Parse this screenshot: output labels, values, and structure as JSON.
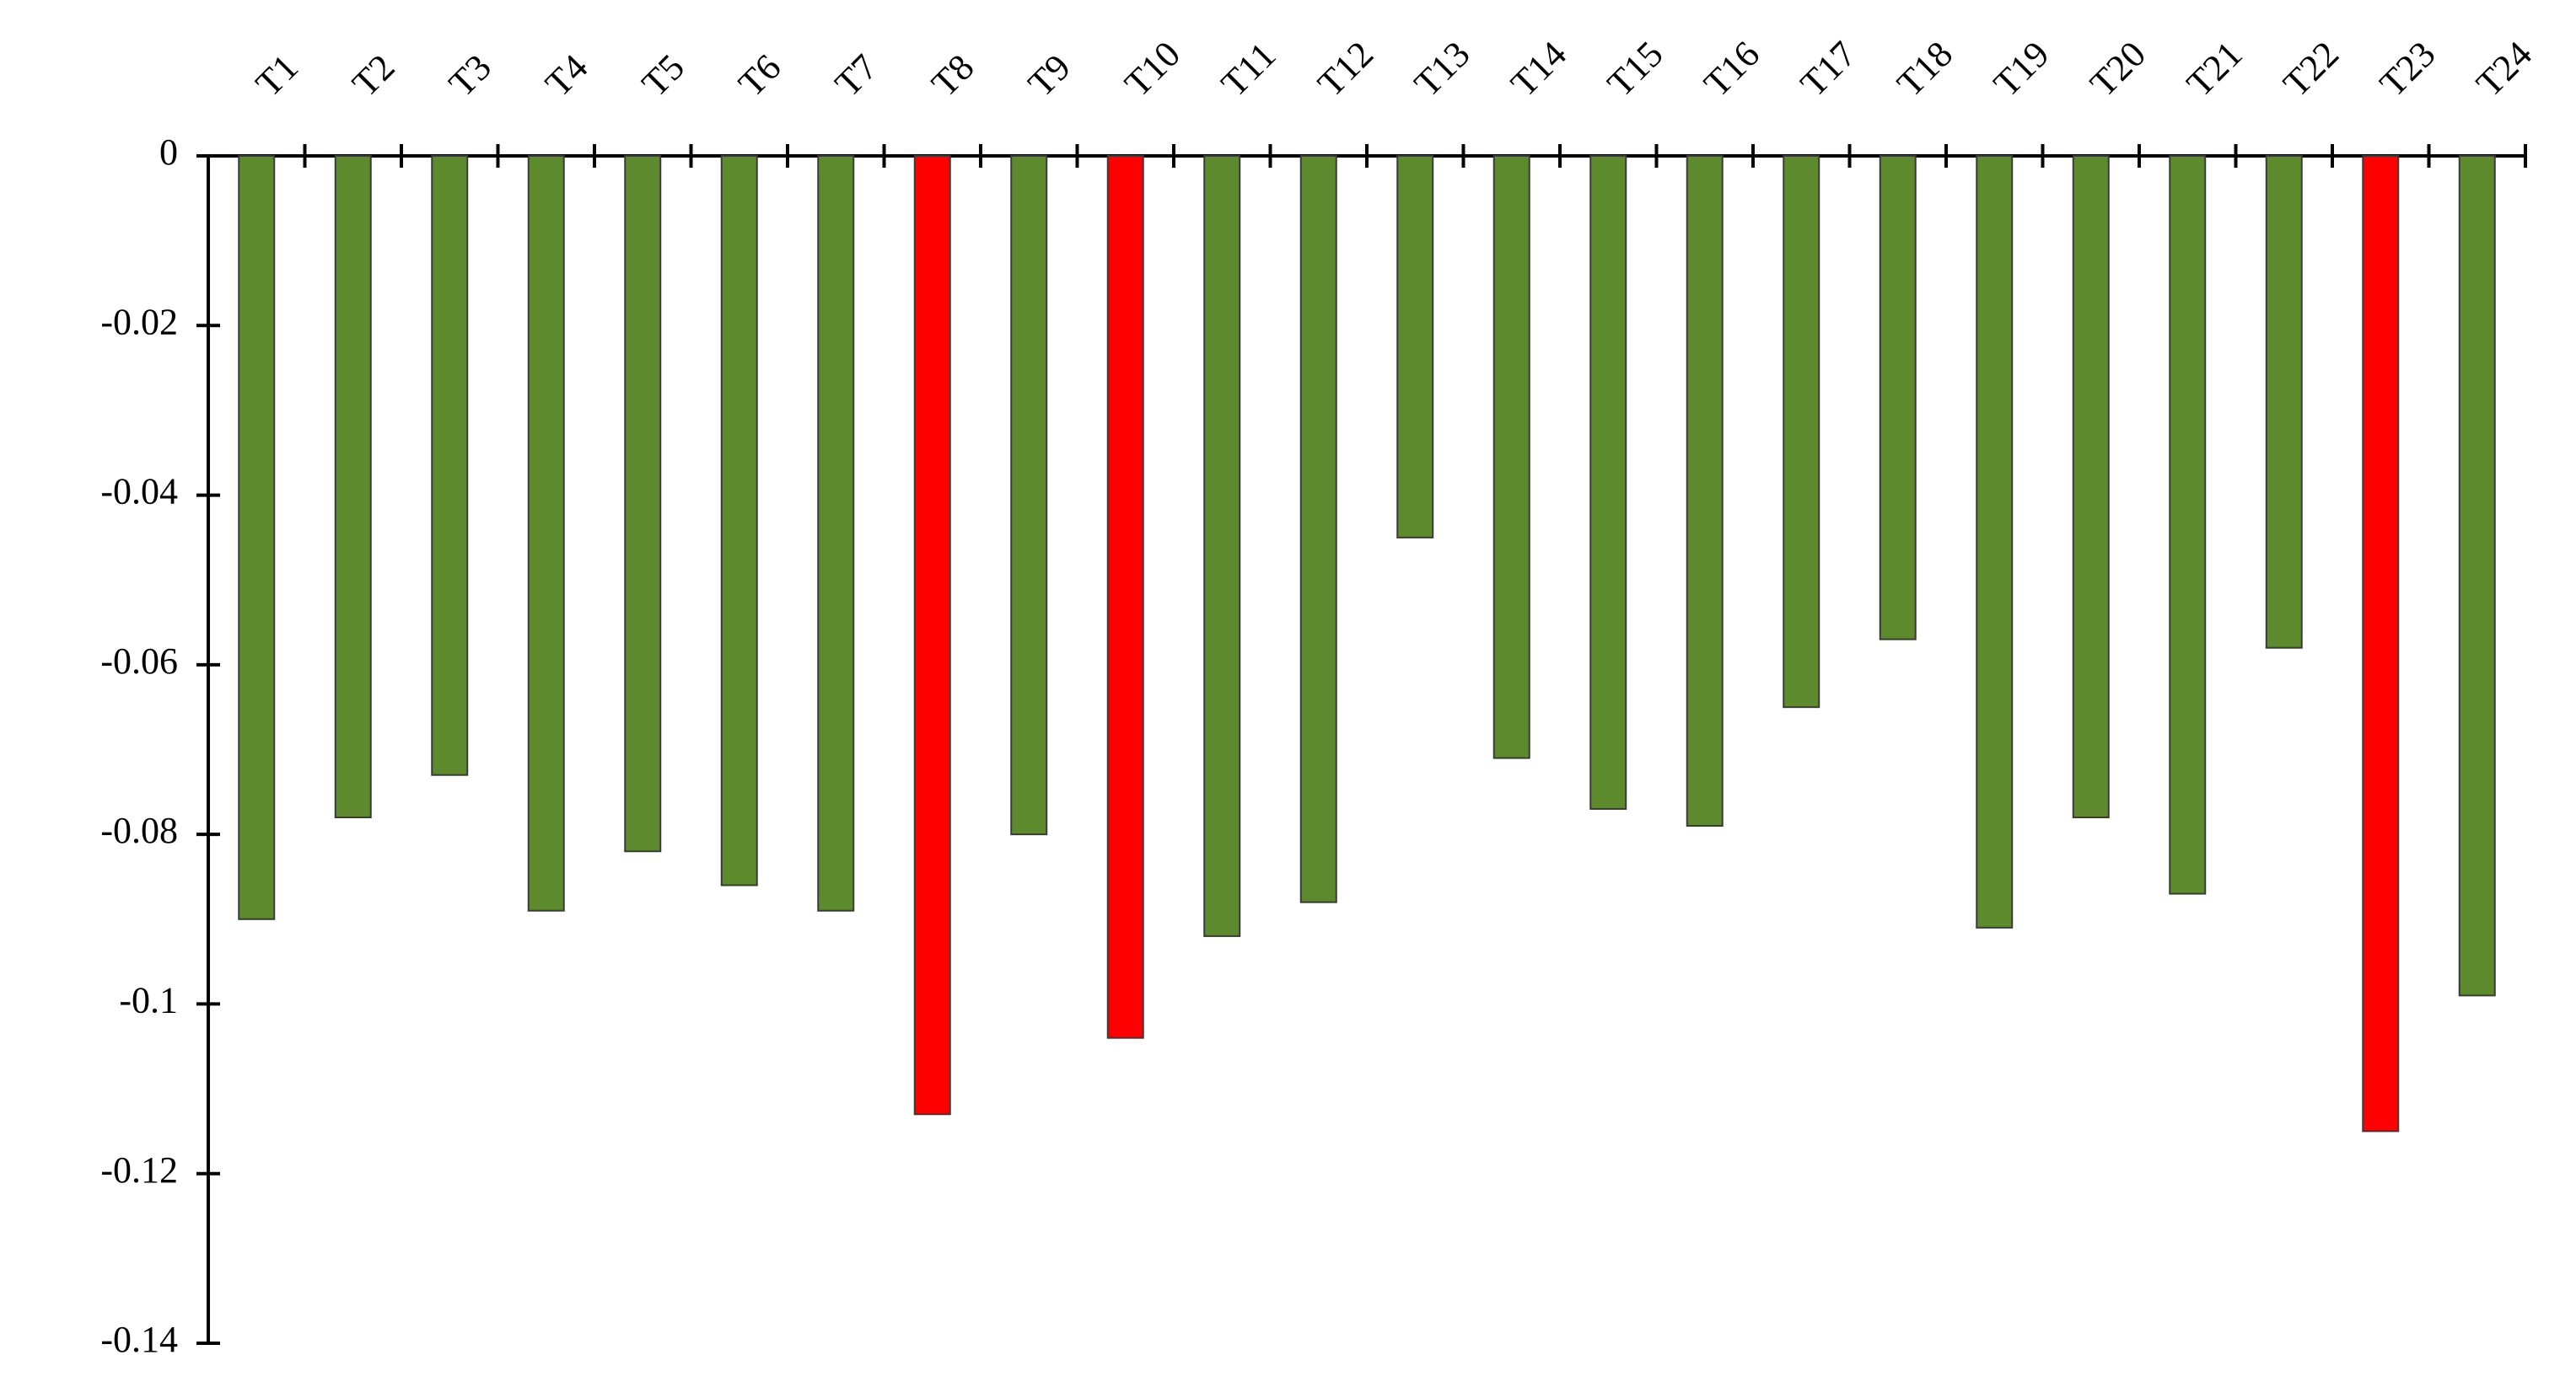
{
  "chart_data": {
    "type": "bar",
    "categories": [
      "T1",
      "T2",
      "T3",
      "T4",
      "T5",
      "T6",
      "T7",
      "T8",
      "T9",
      "T10",
      "T11",
      "T12",
      "T13",
      "T14",
      "T15",
      "T16",
      "T17",
      "T18",
      "T19",
      "T20",
      "T21",
      "T22",
      "T23",
      "T24"
    ],
    "values": [
      -0.09,
      -0.078,
      -0.073,
      -0.089,
      -0.082,
      -0.086,
      -0.089,
      -0.113,
      -0.08,
      -0.104,
      -0.092,
      -0.088,
      -0.045,
      -0.071,
      -0.077,
      -0.079,
      -0.065,
      -0.057,
      -0.091,
      -0.078,
      -0.087,
      -0.058,
      -0.115,
      -0.099
    ],
    "colors": [
      "#5e8a2e",
      "#5e8a2e",
      "#5e8a2e",
      "#5e8a2e",
      "#5e8a2e",
      "#5e8a2e",
      "#5e8a2e",
      "#ff0000",
      "#5e8a2e",
      "#ff0000",
      "#5e8a2e",
      "#5e8a2e",
      "#5e8a2e",
      "#5e8a2e",
      "#5e8a2e",
      "#5e8a2e",
      "#5e8a2e",
      "#5e8a2e",
      "#5e8a2e",
      "#5e8a2e",
      "#5e8a2e",
      "#5e8a2e",
      "#ff0000",
      "#5e8a2e"
    ],
    "ylim": [
      -0.14,
      0
    ],
    "yticks": [
      0,
      -0.02,
      -0.04,
      -0.06,
      -0.08,
      -0.1,
      -0.12,
      -0.14
    ],
    "grid": false
  }
}
